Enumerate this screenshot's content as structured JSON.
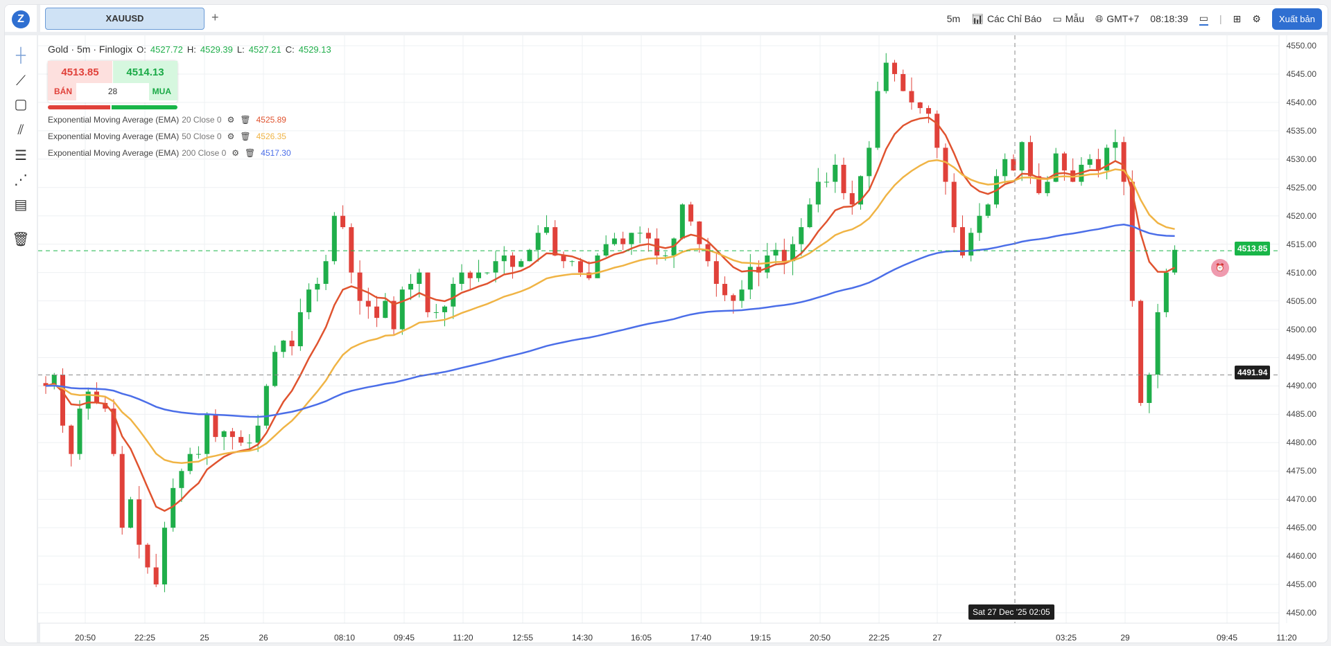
{
  "topbar": {
    "logo": "Z",
    "tab": "XAUUSD",
    "add": "+",
    "interval": "5m",
    "indicators": "Các Chỉ Báo",
    "templates": "Mẫu",
    "timezone": "GMT+7",
    "clock": "08:18:39",
    "publish": "Xuất bản"
  },
  "legend": {
    "title": "Gold · 5m · Finlogix",
    "o_label": "O:",
    "o": "4527.72",
    "h_label": "H:",
    "h": "4529.39",
    "l_label": "L:",
    "l": "4527.21",
    "c_label": "C:",
    "c": "4529.13"
  },
  "trade": {
    "sell_price": "4513.85",
    "sell_label": "BÁN",
    "spread": "28",
    "buy_price": "4514.13",
    "buy_label": "MUA",
    "sell_ratio": 0.49
  },
  "indicators": [
    {
      "name": "Exponential Moving Average (EMA)",
      "params": "20 Close 0",
      "value": "4525.89",
      "color": "#e0532f"
    },
    {
      "name": "Exponential Moving Average (EMA)",
      "params": "50 Close 0",
      "value": "4526.35",
      "color": "#f0b445"
    },
    {
      "name": "Exponential Moving Average (EMA)",
      "params": "200 Close 0",
      "value": "4517.30",
      "color": "#4b6ee8"
    }
  ],
  "price_axis": [
    "4550.00",
    "4545.00",
    "4540.00",
    "4535.00",
    "4530.00",
    "4525.00",
    "4520.00",
    "4515.00",
    "4510.00",
    "4505.00",
    "4500.00",
    "4495.00",
    "4490.00",
    "4485.00",
    "4480.00",
    "4475.00",
    "4470.00",
    "4465.00",
    "4460.00",
    "4455.00",
    "4450.00"
  ],
  "time_axis": [
    "20:50",
    "22:25",
    "25",
    "26",
    "08:10",
    "09:45",
    "11:20",
    "12:55",
    "14:30",
    "16:05",
    "17:40",
    "19:15",
    "20:50",
    "22:25",
    "27",
    "03:25",
    "29",
    "09:45",
    "11:20"
  ],
  "crosshair": {
    "time_label": "Sat 27 Dec '25 02:05",
    "price_label": "4491.94"
  },
  "last_price_label": "4513.85",
  "chart_data": {
    "type": "candlestick",
    "ylim": [
      4450,
      4550
    ],
    "last_price": 4513.85,
    "crosshair_price": 4491.94,
    "closes": [
      4490,
      4492,
      4483,
      4478,
      4486,
      4489,
      4487,
      4486,
      4478,
      4465,
      4470,
      4462,
      4458,
      4455,
      4465,
      4472,
      4475,
      4478,
      4478,
      4485,
      4481,
      4482,
      4481,
      4480,
      4480,
      4483,
      4490,
      4496,
      4498,
      4497,
      4503,
      4507,
      4508,
      4512,
      4520,
      4518,
      4510,
      4505,
      4504,
      4502,
      4505,
      4500,
      4507,
      4508,
      4510,
      4503,
      4503,
      4504,
      4508,
      4510,
      4509,
      4510,
      4510,
      4512,
      4513,
      4511,
      4512,
      4514,
      4517,
      4518,
      4513,
      4512,
      4512,
      4510,
      4509,
      4513,
      4515,
      4516,
      4515,
      4517,
      4517,
      4516,
      4513,
      4513,
      4516,
      4522,
      4519,
      4515,
      4512,
      4508,
      4506,
      4505,
      4507,
      4511,
      4510,
      4513,
      4514,
      4512,
      4515,
      4518,
      4522,
      4526,
      4526,
      4529,
      4524,
      4522,
      4527,
      4532,
      4542,
      4547,
      4545,
      4542,
      4540,
      4539,
      4538,
      4532,
      4526,
      4518,
      4513,
      4517,
      4520,
      4522,
      4527,
      4530,
      4528,
      4533,
      4527,
      4524,
      4526,
      4531,
      4528,
      4526,
      4529,
      4530,
      4528,
      4532,
      4533,
      4526,
      4505,
      4487,
      4492,
      4503,
      4510,
      4514
    ],
    "ema_periods": [
      20,
      50,
      200
    ]
  }
}
